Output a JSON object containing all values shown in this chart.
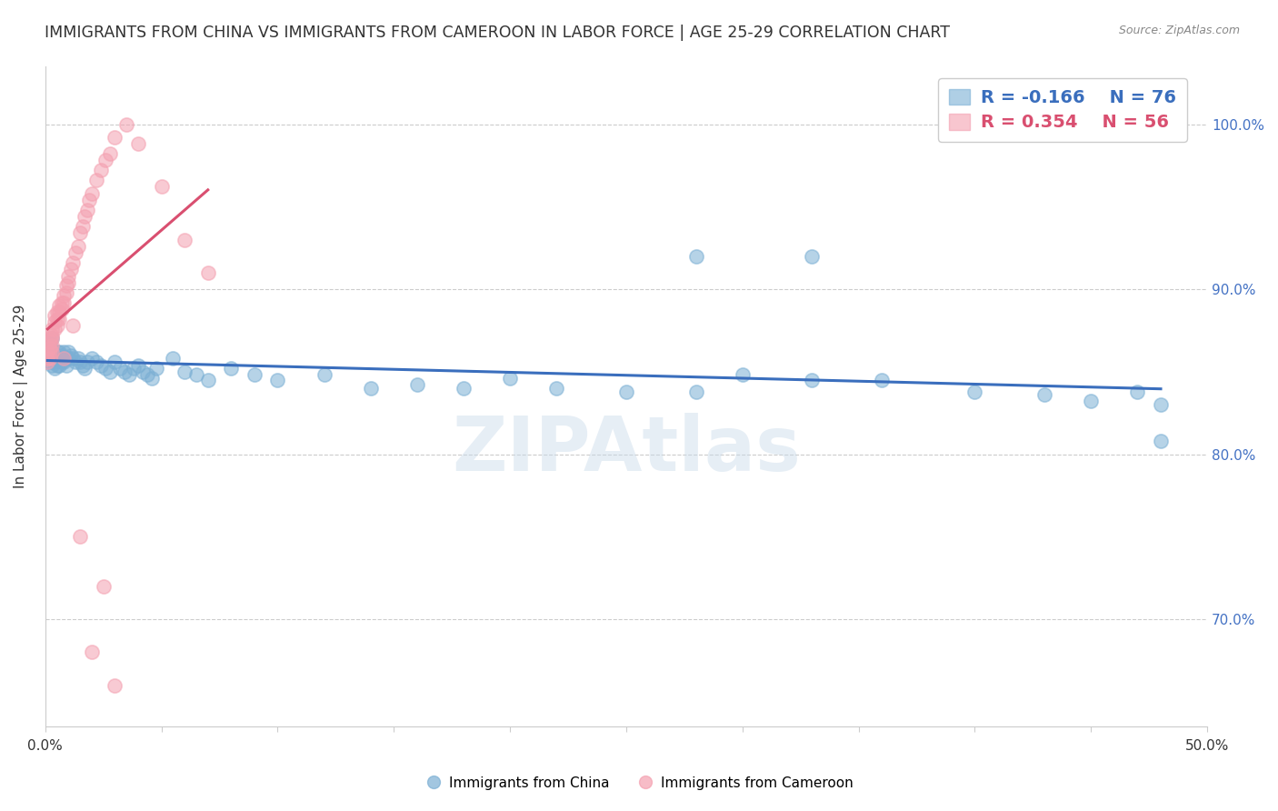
{
  "title": "IMMIGRANTS FROM CHINA VS IMMIGRANTS FROM CAMEROON IN LABOR FORCE | AGE 25-29 CORRELATION CHART",
  "source_text": "Source: ZipAtlas.com",
  "ylabel": "In Labor Force | Age 25-29",
  "china_color": "#7bafd4",
  "cameroon_color": "#f4a0b0",
  "china_line_color": "#3a6ebd",
  "cameroon_line_color": "#d94f70",
  "china_R": -0.166,
  "china_N": 76,
  "cameroon_R": 0.354,
  "cameroon_N": 56,
  "watermark": "ZIPAtlas",
  "x_lim": [
    0.0,
    0.5
  ],
  "y_lim": [
    0.635,
    1.035
  ],
  "y_ticks": [
    0.7,
    0.8,
    0.9,
    1.0
  ],
  "y_tick_labels": [
    "70.0%",
    "80.0%",
    "90.0%",
    "100.0%"
  ],
  "x_ticks": [
    0.0,
    0.05,
    0.1,
    0.15,
    0.2,
    0.25,
    0.3,
    0.35,
    0.4,
    0.45,
    0.5
  ],
  "x_tick_labels": [
    "0.0%",
    "",
    "",
    "",
    "",
    "",
    "",
    "",
    "",
    "",
    "50.0%"
  ],
  "grid_color": "#cccccc",
  "background_color": "#ffffff",
  "title_fontsize": 12.5,
  "axis_label_fontsize": 11,
  "tick_fontsize": 11,
  "legend_fontsize": 14,
  "china_x": [
    0.001,
    0.001,
    0.002,
    0.002,
    0.002,
    0.002,
    0.003,
    0.003,
    0.003,
    0.003,
    0.004,
    0.004,
    0.004,
    0.005,
    0.005,
    0.005,
    0.006,
    0.006,
    0.006,
    0.007,
    0.007,
    0.008,
    0.008,
    0.009,
    0.009,
    0.01,
    0.01,
    0.011,
    0.012,
    0.013,
    0.014,
    0.015,
    0.016,
    0.017,
    0.018,
    0.02,
    0.022,
    0.024,
    0.026,
    0.028,
    0.03,
    0.032,
    0.034,
    0.036,
    0.038,
    0.04,
    0.042,
    0.044,
    0.046,
    0.048,
    0.055,
    0.06,
    0.065,
    0.07,
    0.08,
    0.09,
    0.1,
    0.12,
    0.14,
    0.16,
    0.18,
    0.2,
    0.22,
    0.25,
    0.28,
    0.3,
    0.33,
    0.36,
    0.4,
    0.43,
    0.45,
    0.47,
    0.48,
    0.33,
    0.28,
    0.48
  ],
  "china_y": [
    0.862,
    0.858,
    0.864,
    0.86,
    0.856,
    0.868,
    0.87,
    0.862,
    0.858,
    0.854,
    0.86,
    0.856,
    0.852,
    0.862,
    0.858,
    0.854,
    0.862,
    0.858,
    0.854,
    0.86,
    0.856,
    0.862,
    0.856,
    0.858,
    0.854,
    0.862,
    0.858,
    0.86,
    0.858,
    0.856,
    0.858,
    0.856,
    0.854,
    0.852,
    0.856,
    0.858,
    0.856,
    0.854,
    0.852,
    0.85,
    0.856,
    0.852,
    0.85,
    0.848,
    0.852,
    0.854,
    0.85,
    0.848,
    0.846,
    0.852,
    0.858,
    0.85,
    0.848,
    0.845,
    0.852,
    0.848,
    0.845,
    0.848,
    0.84,
    0.842,
    0.84,
    0.846,
    0.84,
    0.838,
    0.838,
    0.848,
    0.845,
    0.845,
    0.838,
    0.836,
    0.832,
    0.838,
    0.83,
    0.92,
    0.92,
    0.808
  ],
  "cameroon_x": [
    0.001,
    0.001,
    0.001,
    0.002,
    0.002,
    0.002,
    0.002,
    0.002,
    0.003,
    0.003,
    0.003,
    0.003,
    0.003,
    0.004,
    0.004,
    0.004,
    0.005,
    0.005,
    0.005,
    0.006,
    0.006,
    0.006,
    0.007,
    0.007,
    0.008,
    0.008,
    0.009,
    0.009,
    0.01,
    0.01,
    0.011,
    0.012,
    0.013,
    0.014,
    0.015,
    0.016,
    0.017,
    0.018,
    0.019,
    0.02,
    0.022,
    0.024,
    0.026,
    0.028,
    0.03,
    0.035,
    0.04,
    0.05,
    0.06,
    0.07,
    0.015,
    0.025,
    0.02,
    0.03,
    0.012,
    0.008
  ],
  "cameroon_y": [
    0.858,
    0.862,
    0.856,
    0.868,
    0.87,
    0.864,
    0.862,
    0.858,
    0.872,
    0.876,
    0.87,
    0.866,
    0.862,
    0.876,
    0.88,
    0.884,
    0.886,
    0.882,
    0.878,
    0.89,
    0.886,
    0.882,
    0.892,
    0.888,
    0.896,
    0.892,
    0.898,
    0.902,
    0.908,
    0.904,
    0.912,
    0.916,
    0.922,
    0.926,
    0.934,
    0.938,
    0.944,
    0.948,
    0.954,
    0.958,
    0.966,
    0.972,
    0.978,
    0.982,
    0.992,
    1.0,
    0.988,
    0.962,
    0.93,
    0.91,
    0.75,
    0.72,
    0.68,
    0.66,
    0.878,
    0.858
  ]
}
